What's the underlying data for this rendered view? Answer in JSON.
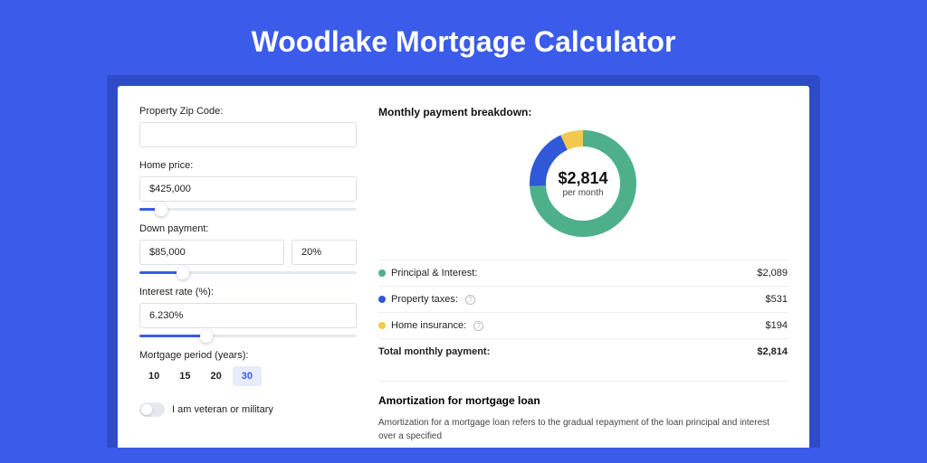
{
  "page": {
    "title": "Woodlake Mortgage Calculator"
  },
  "colors": {
    "brand": "#3b5beb",
    "brand_dark": "#2e4cc9",
    "segment_pi": "#4eb08b",
    "segment_tax": "#3058d8",
    "segment_ins": "#f2c94c"
  },
  "form": {
    "zip": {
      "label": "Property Zip Code:",
      "value": ""
    },
    "price": {
      "label": "Home price:",
      "value": "$425,000",
      "slider_pct": 10
    },
    "down": {
      "label": "Down payment:",
      "amount": "$85,000",
      "pct": "20%",
      "slider_pct": 20
    },
    "rate": {
      "label": "Interest rate (%):",
      "value": "6.230%",
      "slider_pct": 31
    },
    "period": {
      "label": "Mortgage period (years):",
      "options": [
        "10",
        "15",
        "20",
        "30"
      ],
      "active": "30"
    },
    "veteran": {
      "label": "I am veteran or military",
      "on": false
    }
  },
  "breakdown": {
    "title": "Monthly payment breakdown:",
    "center_amount": "$2,814",
    "center_sub": "per month",
    "donut": {
      "segments": [
        {
          "name": "principal_interest",
          "value": 2089,
          "color": "#4eb08b"
        },
        {
          "name": "property_taxes",
          "value": 531,
          "color": "#3058d8"
        },
        {
          "name": "home_insurance",
          "value": 194,
          "color": "#f2c94c"
        }
      ],
      "total": 2814,
      "radius": 50,
      "thickness": 18
    },
    "rows": [
      {
        "label": "Principal & Interest:",
        "amount": "$2,089",
        "color": "#4eb08b",
        "info": false
      },
      {
        "label": "Property taxes:",
        "amount": "$531",
        "color": "#3058d8",
        "info": true
      },
      {
        "label": "Home insurance:",
        "amount": "$194",
        "color": "#f2c94c",
        "info": true
      }
    ],
    "total_label": "Total monthly payment:",
    "total_amount": "$2,814"
  },
  "amort": {
    "title": "Amortization for mortgage loan",
    "text": "Amortization for a mortgage loan refers to the gradual repayment of the loan principal and interest over a specified"
  }
}
